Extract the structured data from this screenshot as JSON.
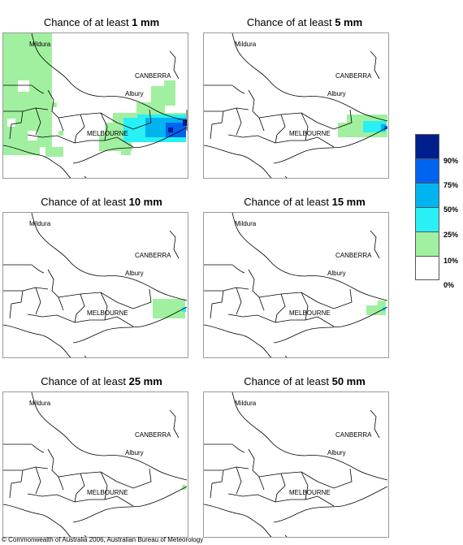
{
  "title_prefix": "Chance of at least ",
  "panels": [
    {
      "amount": "1 mm"
    },
    {
      "amount": "5 mm"
    },
    {
      "amount": "10 mm"
    },
    {
      "amount": "15 mm"
    },
    {
      "amount": "25 mm"
    },
    {
      "amount": "50 mm"
    }
  ],
  "places": {
    "mildura": "Mildura",
    "canberra": "CANBERRA",
    "albury": "Albury",
    "melbourne": "MELBOURNE"
  },
  "legend": {
    "colors": [
      "#001e8c",
      "#0064f0",
      "#00b4f0",
      "#28f0f5",
      "#a0f0a0",
      "#ffffff"
    ],
    "labels": [
      "90%",
      "75%",
      "50%",
      "25%",
      "10%",
      "0%"
    ]
  },
  "copyright": "© Commonwealth of Australia 2006, Australian Bureau of Meteorology"
}
